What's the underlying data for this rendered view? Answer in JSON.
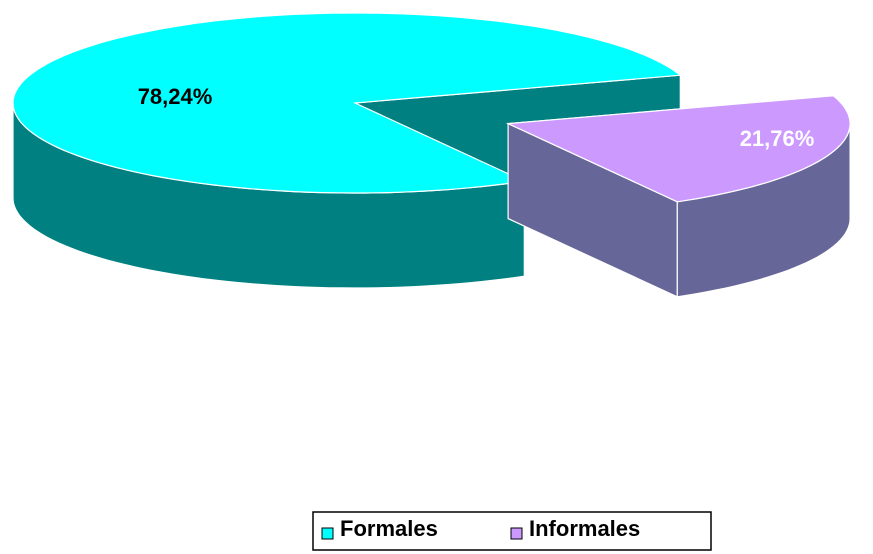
{
  "chart_data": {
    "type": "pie3d",
    "categories": [
      "Formales",
      "Informales"
    ],
    "values": [
      78.24,
      21.76
    ],
    "value_labels": [
      "78,24%",
      "21,76%"
    ],
    "colors": [
      "#00ffff",
      "#cc99ff"
    ],
    "side_colors": [
      "#008080",
      "#666699"
    ],
    "legend": "bottom"
  }
}
